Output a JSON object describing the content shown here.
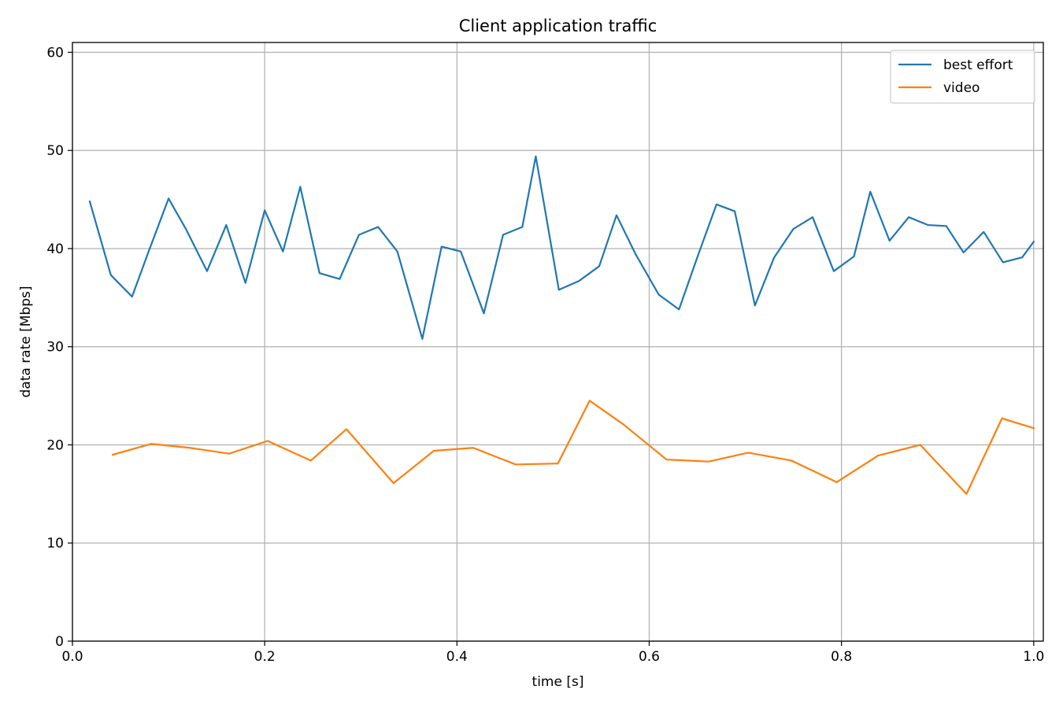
{
  "chart_data": {
    "type": "line",
    "title": "Client application traffic",
    "xlabel": "time [s]",
    "ylabel": "data rate [Mbps]",
    "xlim": [
      0.0,
      1.01
    ],
    "ylim": [
      0,
      61
    ],
    "xticks": [
      0.0,
      0.2,
      0.4,
      0.6,
      0.8,
      1.0
    ],
    "xtick_labels": [
      "0.0",
      "0.2",
      "0.4",
      "0.6",
      "0.8",
      "1.0"
    ],
    "yticks": [
      0,
      10,
      20,
      30,
      40,
      50,
      60
    ],
    "ytick_labels": [
      "0",
      "10",
      "20",
      "30",
      "40",
      "50",
      "60"
    ],
    "grid": true,
    "legend_position": "top-right",
    "series": [
      {
        "name": "best effort",
        "color": "#1f77b4",
        "x": [
          0.018,
          0.04,
          0.062,
          0.08,
          0.1,
          0.118,
          0.14,
          0.16,
          0.18,
          0.2,
          0.219,
          0.237,
          0.257,
          0.278,
          0.298,
          0.318,
          0.338,
          0.364,
          0.384,
          0.404,
          0.428,
          0.448,
          0.468,
          0.482,
          0.506,
          0.527,
          0.548,
          0.566,
          0.586,
          0.61,
          0.631,
          0.65,
          0.67,
          0.689,
          0.71,
          0.73,
          0.75,
          0.77,
          0.792,
          0.813,
          0.83,
          0.85,
          0.87,
          0.89,
          0.909,
          0.927,
          0.948,
          0.968,
          0.988,
          1.0
        ],
        "y": [
          44.8,
          37.3,
          35.1,
          39.9,
          45.1,
          42.0,
          37.7,
          42.4,
          36.5,
          43.9,
          39.7,
          46.3,
          37.5,
          36.9,
          41.4,
          42.2,
          39.7,
          30.8,
          40.2,
          39.7,
          33.4,
          41.4,
          42.2,
          49.4,
          35.8,
          36.7,
          38.2,
          43.4,
          39.4,
          35.3,
          33.8,
          39.1,
          44.5,
          43.8,
          34.2,
          39.1,
          42.0,
          43.2,
          37.7,
          39.2,
          45.8,
          40.8,
          43.2,
          42.4,
          42.3,
          39.6,
          41.7,
          38.6,
          39.1,
          40.7
        ]
      },
      {
        "name": "video",
        "color": "#ff7f0e",
        "x": [
          0.042,
          0.082,
          0.122,
          0.163,
          0.203,
          0.248,
          0.285,
          0.334,
          0.376,
          0.417,
          0.461,
          0.505,
          0.538,
          0.573,
          0.618,
          0.662,
          0.703,
          0.748,
          0.795,
          0.838,
          0.882,
          0.93,
          0.967,
          1.0
        ],
        "y": [
          19.0,
          20.1,
          19.7,
          19.1,
          20.4,
          18.4,
          21.6,
          16.1,
          19.4,
          19.7,
          18.0,
          18.1,
          24.5,
          22.1,
          18.5,
          18.3,
          19.2,
          18.4,
          16.2,
          18.9,
          20.0,
          15.0,
          22.7,
          21.7
        ]
      }
    ]
  }
}
